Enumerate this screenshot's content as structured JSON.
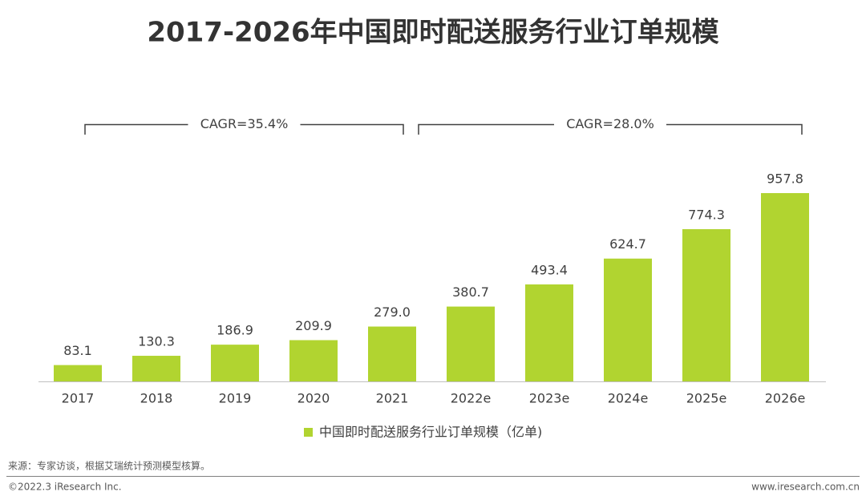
{
  "chart_data": {
    "type": "bar",
    "title": "2017-2026年中国即时配送服务行业订单规模",
    "categories": [
      "2017",
      "2018",
      "2019",
      "2020",
      "2021",
      "2022e",
      "2023e",
      "2024e",
      "2025e",
      "2026e"
    ],
    "series": [
      {
        "name": "中国即时配送服务行业订单规模（亿单)",
        "color": "#b1d430",
        "values": [
          83.1,
          130.3,
          186.9,
          209.9,
          279.0,
          380.7,
          493.4,
          624.7,
          774.3,
          957.8
        ],
        "value_labels": [
          "83.1",
          "130.3",
          "186.9",
          "209.9",
          "279.0",
          "380.7",
          "493.4",
          "624.7",
          "774.3",
          "957.8"
        ]
      }
    ],
    "annotations": [
      "CAGR=35.4%",
      "CAGR=28.0%"
    ]
  },
  "footer": {
    "source": "来源：专家访谈，根据艾瑞统计预测模型核算。",
    "copyright": "©2022.3 iResearch Inc.",
    "website": "www.iresearch.com.cn"
  }
}
